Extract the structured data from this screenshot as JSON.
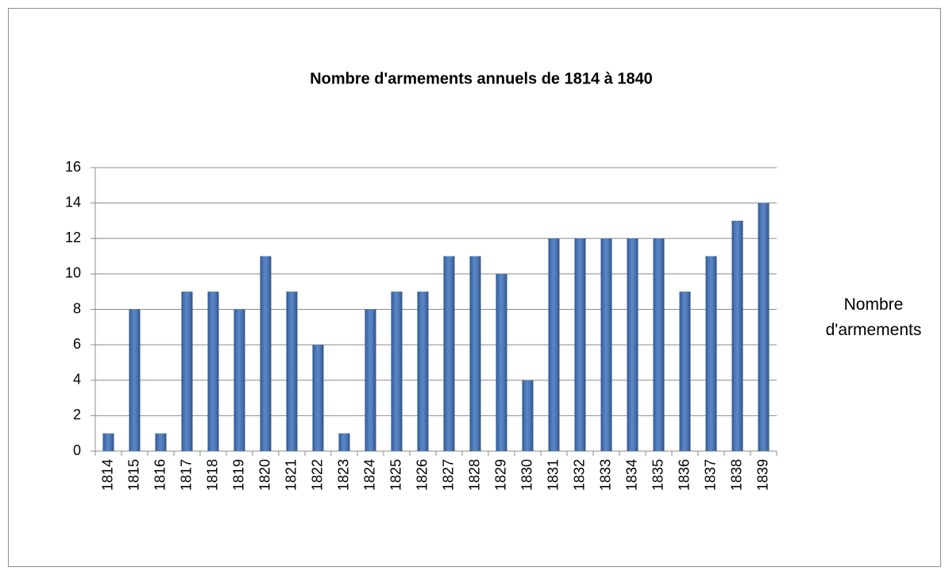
{
  "chart_data": {
    "type": "bar",
    "title": "Nombre d'armements annuels de 1814 à 1840",
    "categories": [
      "1814",
      "1815",
      "1816",
      "1817",
      "1818",
      "1819",
      "1820",
      "1821",
      "1822",
      "1823",
      "1824",
      "1825",
      "1826",
      "1827",
      "1828",
      "1829",
      "1830",
      "1831",
      "1832",
      "1833",
      "1834",
      "1835",
      "1836",
      "1837",
      "1838",
      "1839"
    ],
    "series": [
      {
        "name": "Nombre d'armements",
        "color": "#3b70bd",
        "values": [
          1,
          8,
          1,
          9,
          9,
          8,
          11,
          9,
          6,
          1,
          8,
          9,
          9,
          11,
          11,
          10,
          4,
          12,
          12,
          12,
          12,
          12,
          9,
          11,
          13,
          14
        ]
      }
    ],
    "ylim": [
      0,
      16
    ],
    "yticks": [
      0,
      2,
      4,
      6,
      8,
      10,
      12,
      14,
      16
    ],
    "grid": true,
    "legend": "right"
  }
}
